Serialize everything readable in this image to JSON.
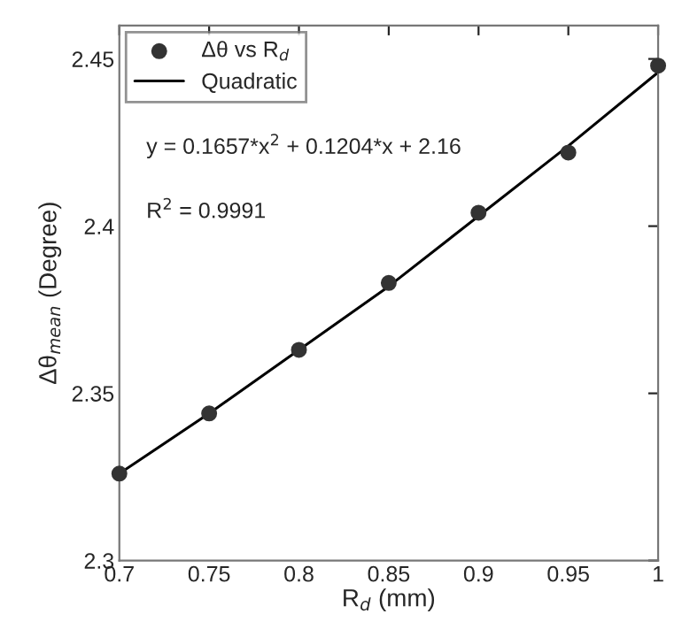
{
  "chart_data": {
    "type": "scatter",
    "xlabel": "R$_{d}$ (mm)",
    "ylabel": "Δθ$_{mean}$ (Degree)",
    "xlim": [
      0.7,
      1
    ],
    "xticks": [
      0.7,
      0.75,
      0.8,
      0.85,
      0.9,
      0.95,
      1
    ],
    "ylim": [
      2.3,
      2.46
    ],
    "yticks": [
      2.3,
      2.35,
      2.4,
      2.45
    ],
    "grid": false,
    "legend": "top left",
    "annotations": [
      "y = 0.1657*x$^{2}$ + 0.1204*x + 2.16",
      "R$^{2}$ = 0.9991"
    ],
    "series": [
      {
        "name": "Δθ vs R$_{d}$",
        "marker": "circle",
        "color": "#333333",
        "x": [
          0.7,
          0.75,
          0.8,
          0.85,
          0.9,
          0.95,
          1
        ],
        "values": [
          2.326,
          2.344,
          2.363,
          2.383,
          2.404,
          2.422,
          2.448
        ]
      },
      {
        "name": "Quadratic",
        "type": "line",
        "line_style": "solid",
        "marker": "none",
        "color": "#000000",
        "x": [
          0.7,
          0.75,
          0.8,
          0.85,
          0.9,
          0.95,
          1
        ],
        "values": [
          2.326,
          2.344,
          2.363,
          2.382,
          2.403,
          2.424,
          2.446
        ]
      }
    ]
  }
}
